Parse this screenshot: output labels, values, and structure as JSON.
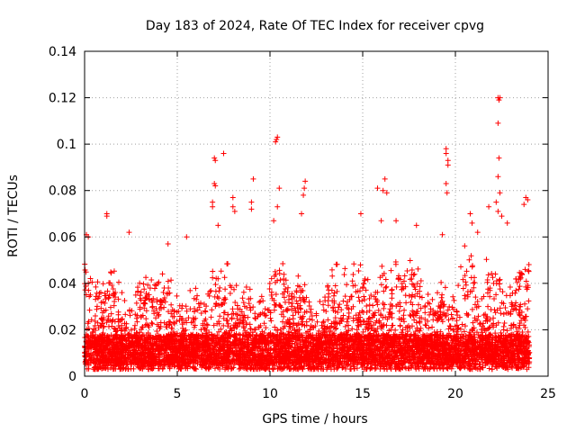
{
  "chart_data": {
    "type": "scatter",
    "title": "Day 183 of 2024, Rate Of TEC Index for receiver cpvg",
    "xlabel": "GPS time / hours",
    "ylabel": "ROTI / TECUs",
    "xlim": [
      0,
      25
    ],
    "ylim": [
      0,
      0.14
    ],
    "xticks": [
      0,
      5,
      10,
      15,
      20,
      25
    ],
    "xtick_labels": [
      "0",
      "5",
      "10",
      "15",
      "20",
      "25"
    ],
    "yticks": [
      0,
      0.02,
      0.04,
      0.06,
      0.08,
      0.1,
      0.12,
      0.14
    ],
    "ytick_labels": [
      "0",
      "0.02",
      "0.04",
      "0.06",
      "0.08",
      "0.1",
      "0.12",
      "0.14"
    ],
    "grid": true,
    "marker": "+",
    "color": "#ff0000",
    "data_extent_x": [
      0,
      24
    ],
    "bulk_y_range": [
      0.003,
      0.045
    ],
    "median_y": 0.014,
    "max_y": 0.12,
    "outliers": [
      {
        "x": 0.1,
        "y": 0.061
      },
      {
        "x": 0.2,
        "y": 0.06
      },
      {
        "x": 1.2,
        "y": 0.07
      },
      {
        "x": 1.2,
        "y": 0.069
      },
      {
        "x": 2.4,
        "y": 0.062
      },
      {
        "x": 4.5,
        "y": 0.057
      },
      {
        "x": 5.5,
        "y": 0.06
      },
      {
        "x": 7.0,
        "y": 0.094
      },
      {
        "x": 7.05,
        "y": 0.093
      },
      {
        "x": 7.0,
        "y": 0.083
      },
      {
        "x": 7.05,
        "y": 0.082
      },
      {
        "x": 6.9,
        "y": 0.075
      },
      {
        "x": 6.9,
        "y": 0.073
      },
      {
        "x": 7.5,
        "y": 0.096
      },
      {
        "x": 7.2,
        "y": 0.065
      },
      {
        "x": 8.0,
        "y": 0.077
      },
      {
        "x": 8.0,
        "y": 0.073
      },
      {
        "x": 8.1,
        "y": 0.071
      },
      {
        "x": 9.0,
        "y": 0.075
      },
      {
        "x": 9.0,
        "y": 0.072
      },
      {
        "x": 9.1,
        "y": 0.085
      },
      {
        "x": 10.2,
        "y": 0.067
      },
      {
        "x": 10.3,
        "y": 0.101
      },
      {
        "x": 10.35,
        "y": 0.102
      },
      {
        "x": 10.4,
        "y": 0.103
      },
      {
        "x": 10.4,
        "y": 0.073
      },
      {
        "x": 10.5,
        "y": 0.081
      },
      {
        "x": 11.7,
        "y": 0.07
      },
      {
        "x": 11.8,
        "y": 0.078
      },
      {
        "x": 11.9,
        "y": 0.084
      },
      {
        "x": 11.85,
        "y": 0.081
      },
      {
        "x": 14.9,
        "y": 0.07
      },
      {
        "x": 15.8,
        "y": 0.081
      },
      {
        "x": 16.2,
        "y": 0.085
      },
      {
        "x": 16.1,
        "y": 0.08
      },
      {
        "x": 16.3,
        "y": 0.079
      },
      {
        "x": 16.0,
        "y": 0.067
      },
      {
        "x": 16.8,
        "y": 0.067
      },
      {
        "x": 17.9,
        "y": 0.065
      },
      {
        "x": 19.3,
        "y": 0.061
      },
      {
        "x": 19.5,
        "y": 0.098
      },
      {
        "x": 19.5,
        "y": 0.096
      },
      {
        "x": 19.6,
        "y": 0.093
      },
      {
        "x": 19.6,
        "y": 0.091
      },
      {
        "x": 19.5,
        "y": 0.083
      },
      {
        "x": 19.55,
        "y": 0.079
      },
      {
        "x": 20.8,
        "y": 0.07
      },
      {
        "x": 20.9,
        "y": 0.066
      },
      {
        "x": 21.2,
        "y": 0.062
      },
      {
        "x": 21.8,
        "y": 0.073
      },
      {
        "x": 22.3,
        "y": 0.12
      },
      {
        "x": 22.35,
        "y": 0.119
      },
      {
        "x": 22.4,
        "y": 0.12
      },
      {
        "x": 22.3,
        "y": 0.109
      },
      {
        "x": 22.35,
        "y": 0.094
      },
      {
        "x": 22.3,
        "y": 0.086
      },
      {
        "x": 22.4,
        "y": 0.079
      },
      {
        "x": 22.2,
        "y": 0.075
      },
      {
        "x": 22.3,
        "y": 0.071
      },
      {
        "x": 22.5,
        "y": 0.069
      },
      {
        "x": 23.8,
        "y": 0.077
      },
      {
        "x": 23.9,
        "y": 0.076
      },
      {
        "x": 23.7,
        "y": 0.074
      },
      {
        "x": 22.8,
        "y": 0.066
      }
    ]
  }
}
